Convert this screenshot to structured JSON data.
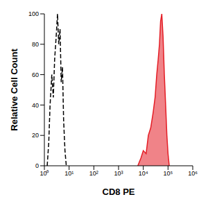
{
  "chart_data": {
    "type": "line",
    "x_label": "CD8 PE",
    "y_label": "Relative Cell Count",
    "log": "x",
    "grid": false,
    "xlim": [
      1,
      1000000
    ],
    "xticks": [
      {
        "value": 1,
        "label": "10⁰"
      },
      {
        "value": 10,
        "label": "10¹"
      },
      {
        "value": 100,
        "label": "10²"
      },
      {
        "value": 1000,
        "label": "10³"
      },
      {
        "value": 10000,
        "label": "10⁴"
      },
      {
        "value": 100000,
        "label": "10⁵"
      },
      {
        "value": 1000000,
        "label": "10⁶"
      }
    ],
    "ylim": [
      0,
      100
    ],
    "yticks": [
      0,
      20,
      40,
      60,
      80,
      100
    ],
    "x": [
      1.3,
      1.5,
      1.7,
      2.0,
      2.3,
      2.6,
      3.0,
      3.4,
      3.8,
      4.3,
      4.8,
      5.4,
      6.0,
      6.8,
      7.7,
      6000,
      8000,
      10000,
      13000,
      16000,
      20000,
      25000,
      30000,
      35000,
      40000,
      45000,
      50000,
      56000,
      63000,
      71000,
      80000,
      90000,
      100000,
      112000
    ],
    "series": [
      {
        "type": "line",
        "color": "#000000",
        "line_style": "dashed",
        "values": [
          0,
          15,
          40,
          60,
          45,
          70,
          85,
          100,
          80,
          90,
          55,
          65,
          30,
          10,
          0,
          null,
          null,
          null,
          null,
          null,
          null,
          null,
          null,
          null,
          null,
          null,
          null,
          null,
          null,
          null,
          null,
          null,
          null,
          null
        ]
      },
      {
        "type": "area",
        "color": "#e41e26",
        "line_style": "solid",
        "values": [
          null,
          null,
          null,
          null,
          null,
          null,
          null,
          null,
          null,
          null,
          null,
          null,
          null,
          null,
          null,
          0,
          5,
          10,
          8,
          20,
          25,
          35,
          45,
          60,
          70,
          80,
          95,
          100,
          85,
          60,
          40,
          20,
          8,
          0
        ]
      }
    ]
  }
}
